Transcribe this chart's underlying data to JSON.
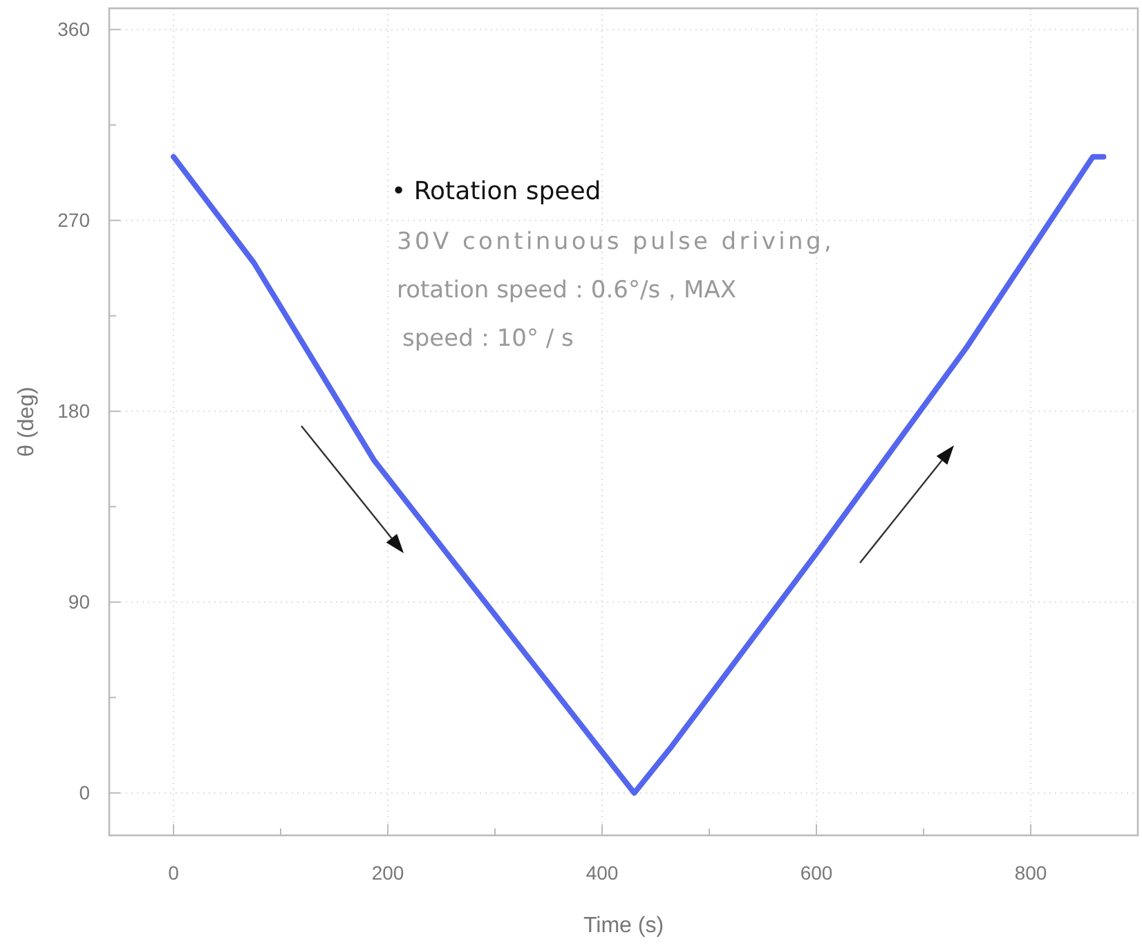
{
  "chart_data": {
    "type": "line",
    "xlabel": "Time (s)",
    "ylabel": "θ (deg)",
    "xlim": [
      -60,
      900
    ],
    "xticks": [
      0,
      {
        "value": 100,
        "label": null
      },
      200,
      {
        "value": 300,
        "label": null
      },
      400,
      {
        "value": 500,
        "label": null
      },
      600,
      {
        "value": 700,
        "label": null
      },
      800
    ],
    "ylim": [
      -20,
      370
    ],
    "yticks": [
      0,
      {
        "value": 45,
        "label": null
      },
      90,
      {
        "value": 135,
        "label": null
      },
      180,
      {
        "value": 225,
        "label": null
      },
      270,
      {
        "value": 315,
        "label": null
      },
      360
    ],
    "grid": true,
    "marker": "none",
    "line_style": "solid",
    "series": [
      {
        "color": "#5566ee",
        "x": [
          0,
          75,
          187,
          300,
          430,
          465,
          600,
          740,
          858,
          868
        ],
        "values": [
          300,
          250,
          157,
          84,
          0,
          22,
          113,
          210,
          300,
          300
        ]
      }
    ],
    "annotations": [
      "• Rotation speed",
      "30V continuous pulse driving,",
      "rotation speed：0.6°/s，MAX",
      "speed：10° / s"
    ]
  }
}
